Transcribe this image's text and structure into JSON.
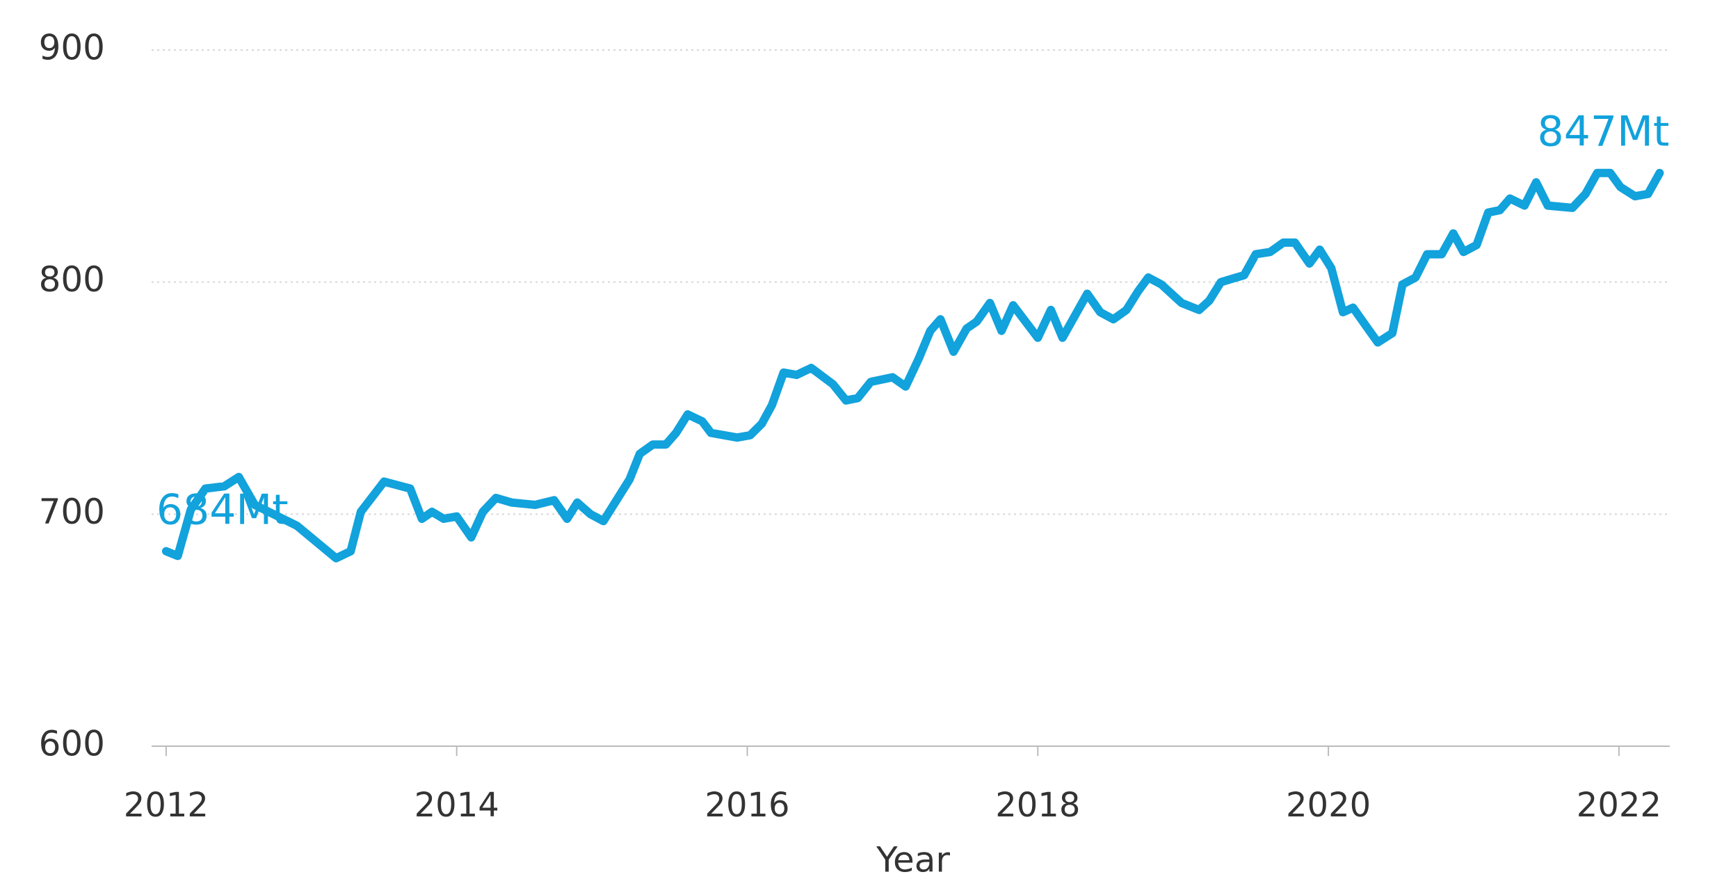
{
  "chart_data": {
    "type": "line",
    "x_label": "Year",
    "x": [
      2012.0,
      2012.08,
      2012.17,
      2012.27,
      2012.4,
      2012.5,
      2012.61,
      2012.9,
      2013.17,
      2013.27,
      2013.34,
      2013.5,
      2013.68,
      2013.76,
      2013.83,
      2013.91,
      2014.0,
      2014.1,
      2014.18,
      2014.27,
      2014.38,
      2014.54,
      2014.67,
      2014.76,
      2014.83,
      2014.92,
      2015.01,
      2015.19,
      2015.26,
      2015.35,
      2015.44,
      2015.51,
      2015.59,
      2015.69,
      2015.75,
      2015.93,
      2016.02,
      2016.1,
      2016.17,
      2016.25,
      2016.34,
      2016.44,
      2016.59,
      2016.68,
      2016.76,
      2016.85,
      2017.0,
      2017.09,
      2017.18,
      2017.26,
      2017.33,
      2017.42,
      2017.51,
      2017.58,
      2017.67,
      2017.75,
      2017.83,
      2018.0,
      2018.09,
      2018.17,
      2018.34,
      2018.43,
      2018.52,
      2018.61,
      2018.69,
      2018.76,
      2018.85,
      2018.99,
      2019.11,
      2019.18,
      2019.26,
      2019.42,
      2019.5,
      2019.6,
      2019.69,
      2019.77,
      2019.87,
      2019.94,
      2020.02,
      2020.1,
      2020.17,
      2020.26,
      2020.34,
      2020.44,
      2020.51,
      2020.6,
      2020.68,
      2020.78,
      2020.86,
      2020.93,
      2021.02,
      2021.1,
      2021.18,
      2021.25,
      2021.35,
      2021.43,
      2021.51,
      2021.68,
      2021.77,
      2021.85,
      2021.94,
      2022.01,
      2022.11,
      2022.2,
      2022.28
    ],
    "series": [
      {
        "color": "#12a2dc",
        "values": [
          684,
          682,
          702,
          711,
          712,
          716,
          704,
          695,
          681,
          684,
          701,
          714,
          711,
          698,
          701,
          698,
          699,
          690,
          701,
          707,
          705,
          704,
          706,
          698,
          705,
          700,
          697,
          715,
          726,
          730,
          730,
          735,
          743,
          740,
          735,
          733,
          734,
          739,
          747,
          761,
          760,
          763,
          756,
          749,
          750,
          757,
          759,
          755,
          767,
          779,
          784,
          770,
          780,
          783,
          791,
          779,
          790,
          776,
          788,
          776,
          795,
          787,
          784,
          788,
          796,
          802,
          799,
          791,
          788,
          792,
          800,
          803,
          812,
          813,
          817,
          817,
          808,
          814,
          806,
          787,
          789,
          781,
          774,
          778,
          799,
          802,
          812,
          812,
          821,
          813,
          816,
          830,
          831,
          836,
          833,
          843,
          833,
          832,
          838,
          847,
          847,
          841,
          837,
          838,
          847
        ],
        "value_labels": [
          "684Mt",
          null,
          null,
          null,
          null,
          null,
          null,
          null,
          null,
          null,
          null,
          null,
          null,
          null,
          null,
          null,
          null,
          null,
          null,
          null,
          null,
          null,
          null,
          null,
          null,
          null,
          null,
          null,
          null,
          null,
          null,
          null,
          null,
          null,
          null,
          null,
          null,
          null,
          null,
          null,
          null,
          null,
          null,
          null,
          null,
          null,
          null,
          null,
          null,
          null,
          null,
          null,
          null,
          null,
          null,
          null,
          null,
          null,
          null,
          null,
          null,
          null,
          null,
          null,
          null,
          null,
          null,
          null,
          null,
          null,
          null,
          null,
          null,
          null,
          null,
          null,
          null,
          null,
          null,
          null,
          null,
          null,
          null,
          null,
          null,
          null,
          null,
          null,
          null,
          null,
          null,
          null,
          null,
          null,
          null,
          null,
          null,
          null,
          null,
          null,
          null,
          null,
          null,
          null,
          "847Mt"
        ]
      }
    ],
    "xlim": [
      2011.9,
      2022.35
    ],
    "xticks": [
      2012,
      2014,
      2016,
      2018,
      2020,
      2022
    ],
    "ylim": [
      600,
      900
    ],
    "yticks": [
      600,
      700,
      800,
      900
    ],
    "grid": true
  }
}
